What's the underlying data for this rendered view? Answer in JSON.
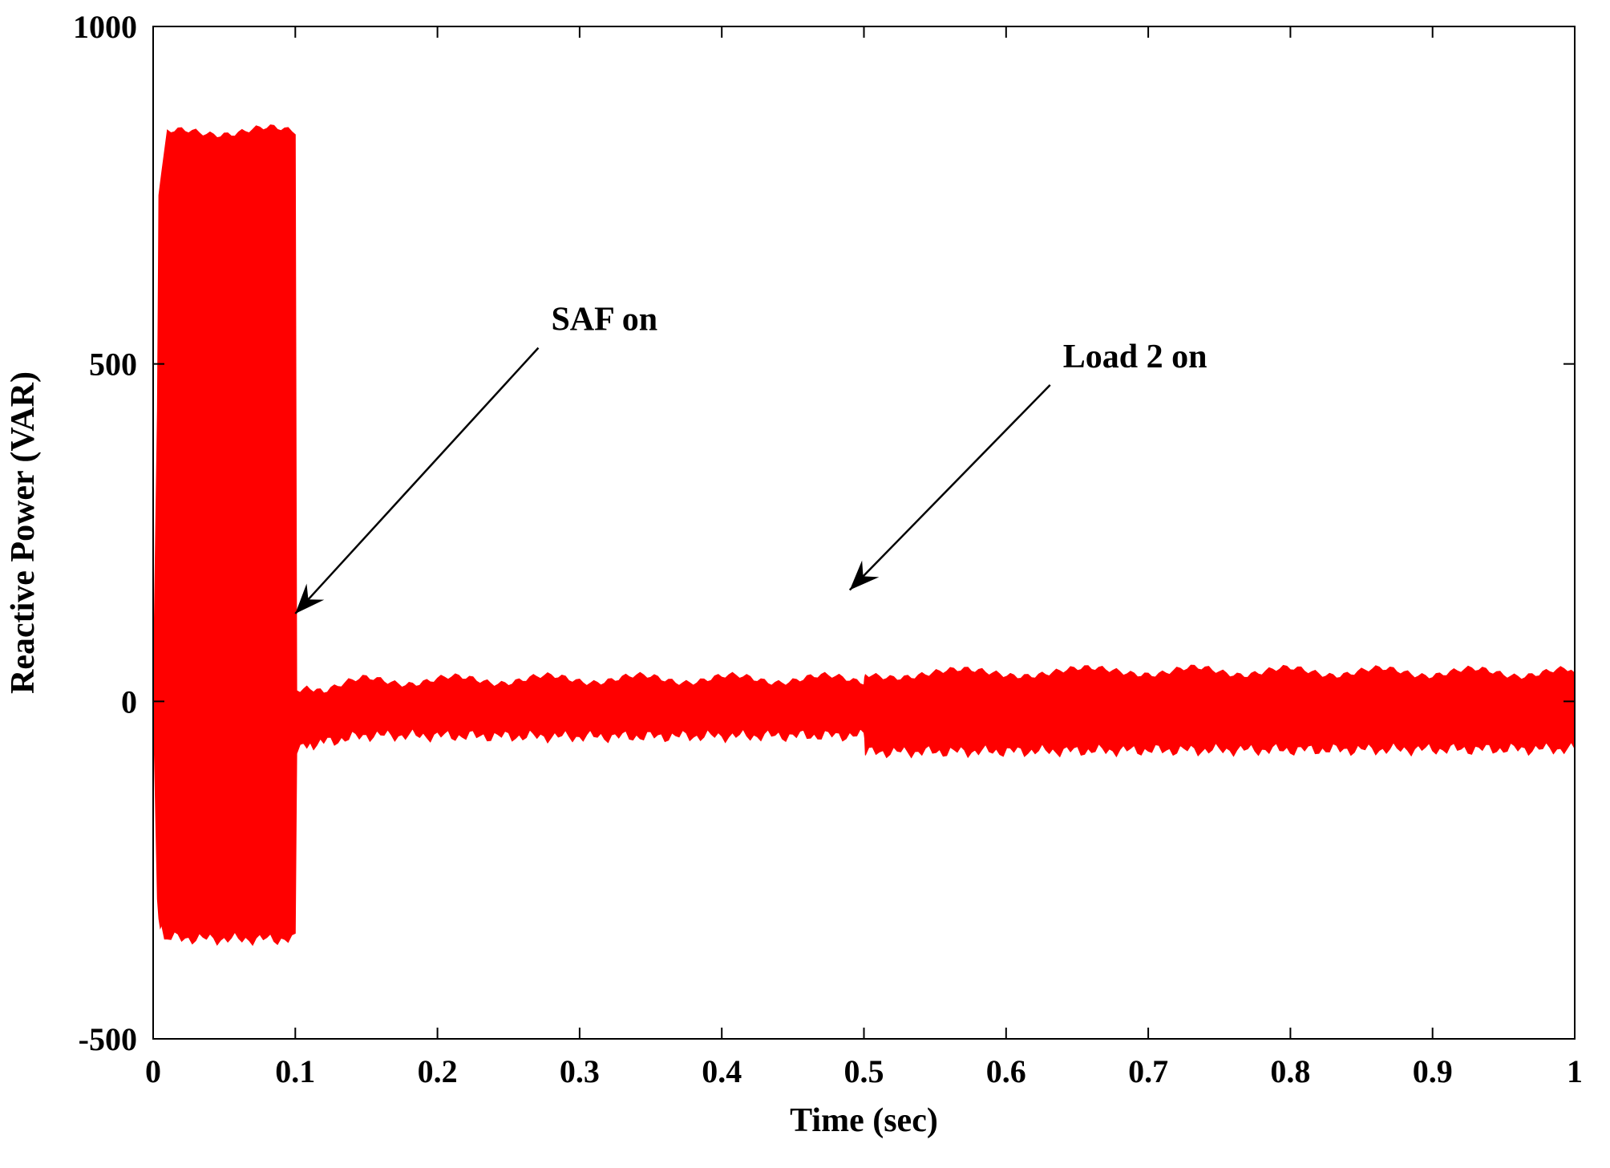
{
  "chart_data": {
    "type": "line",
    "title": "",
    "xlabel": "Time (sec)",
    "ylabel": "Reactive Power (VAR)",
    "xlim": [
      0,
      1
    ],
    "ylim": [
      -500,
      1000
    ],
    "x_ticks": [
      "0",
      "0.1",
      "0.2",
      "0.3",
      "0.4",
      "0.5",
      "0.6",
      "0.7",
      "0.8",
      "0.9",
      "1"
    ],
    "y_ticks": [
      "-500",
      "0",
      "500",
      "1000"
    ],
    "grid": false,
    "legend": "none",
    "series_color": "#ff0000",
    "series": [
      {
        "envelope": [
          {
            "t": 0.0,
            "upper": 0,
            "lower": 0
          },
          {
            "t": 0.003,
            "upper": 430,
            "lower": -300
          },
          {
            "t": 0.004,
            "upper": 740,
            "lower": -320
          },
          {
            "t": 0.006,
            "upper": 790,
            "lower": -340
          },
          {
            "t": 0.01,
            "upper": 840,
            "lower": -350
          },
          {
            "t": 0.05,
            "upper": 845,
            "lower": -352
          },
          {
            "t": 0.1,
            "upper": 845,
            "lower": -352
          },
          {
            "t": 0.101,
            "upper": 10,
            "lower": -70
          },
          {
            "t": 0.12,
            "upper": 20,
            "lower": -60
          },
          {
            "t": 0.15,
            "upper": 30,
            "lower": -50
          },
          {
            "t": 0.3,
            "upper": 33,
            "lower": -52
          },
          {
            "t": 0.5,
            "upper": 33,
            "lower": -50
          },
          {
            "t": 0.501,
            "upper": 40,
            "lower": -75
          },
          {
            "t": 0.7,
            "upper": 45,
            "lower": -72
          },
          {
            "t": 1.0,
            "upper": 42,
            "lower": -70
          }
        ]
      }
    ],
    "annotations": [
      {
        "text": "SAF on",
        "label_at": [
          0.28,
          550
        ],
        "arrow_to": [
          0.1,
          130
        ]
      },
      {
        "text": "Load 2 on",
        "label_at": [
          0.64,
          495
        ],
        "arrow_to": [
          0.49,
          165
        ]
      }
    ]
  }
}
